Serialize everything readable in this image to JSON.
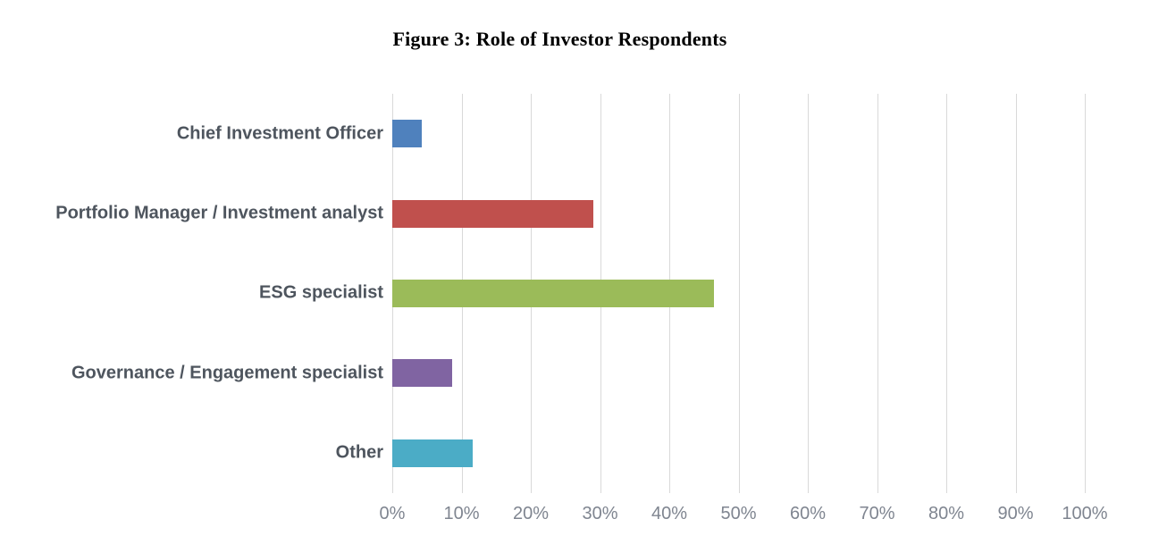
{
  "figure": {
    "title": "Figure 3: Role of Investor Respondents"
  },
  "chart_data": {
    "type": "bar",
    "orientation": "horizontal",
    "title": "Figure 3: Role of Investor Respondents",
    "categories": [
      "Chief Investment Officer",
      "Portfolio Manager / Investment analyst",
      "ESG specialist",
      "Governance / Engagement specialist",
      "Other"
    ],
    "values": [
      4.3,
      29.0,
      46.4,
      8.7,
      11.6
    ],
    "unit": "%",
    "bar_colors": [
      "#4F81BD",
      "#C0504D",
      "#9BBB59",
      "#8064A2",
      "#4BACC6"
    ],
    "xlim": [
      0,
      100
    ],
    "x_tick_values": [
      0,
      10,
      20,
      30,
      40,
      50,
      60,
      70,
      80,
      90,
      100
    ],
    "x_tick_labels": [
      "0%",
      "10%",
      "20%",
      "30%",
      "40%",
      "50%",
      "60%",
      "70%",
      "80%",
      "90%",
      "100%"
    ],
    "ylabel": "",
    "xlabel": "",
    "grid": "vertical-gridlines-on",
    "legend_position": "none",
    "style_colors": {
      "gridline": "#D9D9D9",
      "category_label": "#4E555E",
      "tick_label": "#7F8590",
      "title": "#000000",
      "background": "#FFFFFF"
    }
  }
}
